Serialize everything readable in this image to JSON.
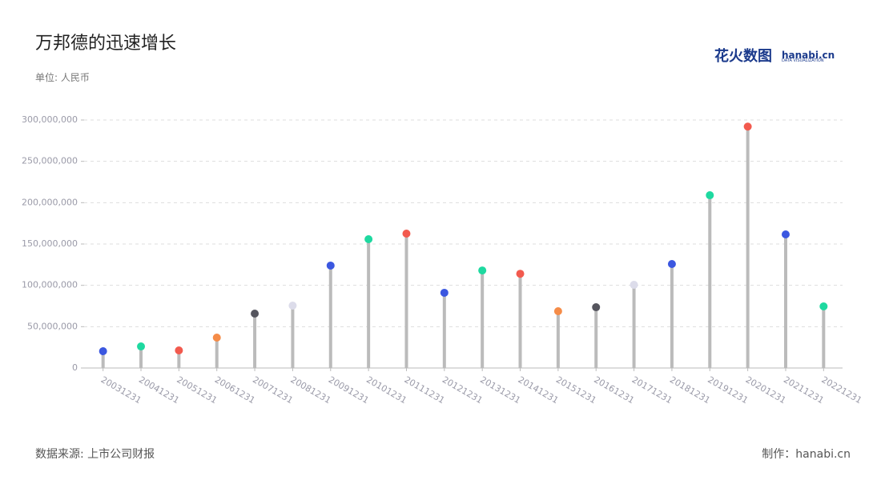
{
  "chart_data": {
    "type": "lollipop",
    "title": "万邦德的迅速增长",
    "unit_label": "单位: 人民币",
    "source": "数据来源: 上市公司财报",
    "credit": "制作：hanabi.cn",
    "logo": {
      "cn": "花火数图",
      "en": "hanabi.cn",
      "sub": "DATA VISUALIZATION"
    },
    "categories": [
      "20031231",
      "20041231",
      "20051231",
      "20061231",
      "20071231",
      "20081231",
      "20091231",
      "20101231",
      "20111231",
      "20121231",
      "20131231",
      "20141231",
      "20151231",
      "20161231",
      "20171231",
      "20181231",
      "20191231",
      "20201231",
      "20211231",
      "20221231"
    ],
    "values": [
      20300000,
      26100000,
      21300000,
      36800000,
      65800000,
      75500000,
      123900000,
      155800000,
      162600000,
      91000000,
      118000000,
      114000000,
      68700000,
      73500000,
      100600000,
      125800000,
      209000000,
      292000000,
      161600000,
      74500000
    ],
    "colors": [
      "#3b57e0",
      "#1ed9a0",
      "#f25a4e",
      "#f58c48",
      "#55555e",
      "#dcdcea",
      "#3b57e0",
      "#1ed9a0",
      "#f25a4e",
      "#3b57e0",
      "#1ed9a0",
      "#f25a4e",
      "#f58c48",
      "#55555e",
      "#dcdcea",
      "#3b57e0",
      "#1ed9a0",
      "#f25a4e",
      "#3b57e0",
      "#1ed9a0"
    ],
    "stem_color": "#bbbbbb",
    "ylim": [
      0,
      300000000
    ],
    "yticks": [
      0,
      {
        "value": 50000000,
        "label": "50,000,000"
      },
      {
        "value": 100000000,
        "label": "100,000,000"
      },
      {
        "value": 150000000,
        "label": "150,000,000"
      },
      {
        "value": 200000000,
        "label": "200,000,000"
      },
      {
        "value": 250000000,
        "label": "250,000,000"
      },
      {
        "value": 300000000,
        "label": "300,000,000"
      }
    ],
    "grid": true
  }
}
